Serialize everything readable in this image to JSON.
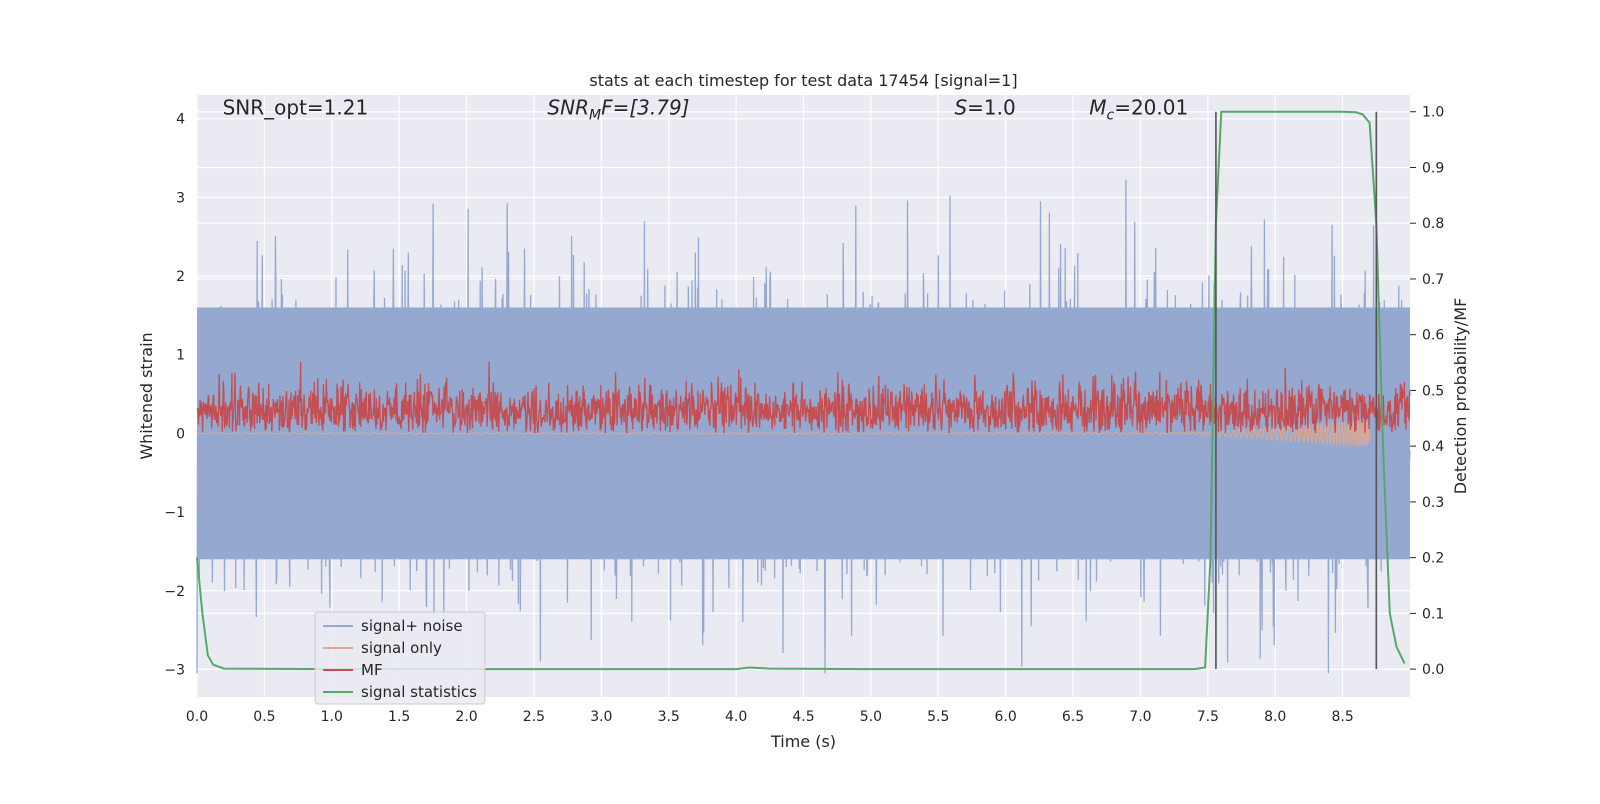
{
  "chart_data": {
    "type": "line",
    "title": "stats at each timestep for test data 17454 [signal=1]",
    "xlabel": "Time (s)",
    "ylabel_left": "Whitened strain",
    "ylabel_right": "Detection probability/MF",
    "xlim": [
      0.0,
      9.0
    ],
    "ylim_left": [
      -3.35,
      4.3
    ],
    "ylim_right": [
      -0.05,
      1.03
    ],
    "xticks": [
      0.0,
      0.5,
      1.0,
      1.5,
      2.0,
      2.5,
      3.0,
      3.5,
      4.0,
      4.5,
      5.0,
      5.5,
      6.0,
      6.5,
      7.0,
      7.5,
      8.0,
      8.5
    ],
    "xtick_labels": [
      "0.0",
      "0.5",
      "1.0",
      "1.5",
      "2.0",
      "2.5",
      "3.0",
      "3.5",
      "4.0",
      "4.5",
      "5.0",
      "5.5",
      "6.0",
      "6.5",
      "7.0",
      "7.5",
      "8.0",
      "8.5"
    ],
    "yticks_left": [
      -3,
      -2,
      -1,
      0,
      1,
      2,
      3,
      4
    ],
    "ytick_labels_left": [
      "−3",
      "−2",
      "−1",
      "0",
      "1",
      "2",
      "3",
      "4"
    ],
    "yticks_right": [
      0.0,
      0.1,
      0.2,
      0.3,
      0.4,
      0.5,
      0.6,
      0.7,
      0.8,
      0.9,
      1.0
    ],
    "ytick_labels_right": [
      "0.0",
      "0.1",
      "0.2",
      "0.3",
      "0.4",
      "0.5",
      "0.6",
      "0.7",
      "0.8",
      "0.9",
      "1.0"
    ],
    "grid": true,
    "legend_position": "lower-left",
    "annotations": [
      {
        "text": "SNR_opt=1.21",
        "x": 0.19,
        "y": 4.05
      },
      {
        "text_main": "SNR",
        "text_sub": "M",
        "text_rest": "F=[3.79]",
        "x": 2.6,
        "y": 4.05
      },
      {
        "text_main": "S",
        "text_sub": "",
        "text_rest": "=1.0",
        "x": 5.62,
        "y": 4.05
      },
      {
        "text_main": "M",
        "text_sub": "c",
        "text_rest": "=20.01",
        "x": 6.62,
        "y": 4.05
      }
    ],
    "series": [
      {
        "name": "signal+ noise",
        "color": "#95a8cf",
        "kind": "noise",
        "band_low": -1.6,
        "band_high": 1.6,
        "peak_max": 3.27,
        "peak_min": -3.05
      },
      {
        "name": "signal only",
        "color": "#e3a88e",
        "kind": "chirp",
        "merger_time": 8.72,
        "peak_amplitude": 0.25
      },
      {
        "name": "MF",
        "color": "#c44e52",
        "kind": "mf",
        "axis": "left",
        "base": 0.0,
        "mean": 0.3,
        "peak_max": 0.95
      },
      {
        "name": "signal statistics",
        "color": "#55a868",
        "axis": "right",
        "x": [
          0.0,
          0.04,
          0.08,
          0.12,
          0.2,
          1.0,
          2.0,
          3.0,
          4.0,
          4.1,
          4.25,
          5.0,
          6.0,
          7.0,
          7.4,
          7.48,
          7.52,
          7.56,
          7.6,
          7.65,
          8.0,
          8.5,
          8.6,
          8.65,
          8.7,
          8.75,
          8.8,
          8.85,
          8.9,
          8.96
        ],
        "y": [
          0.2,
          0.1,
          0.025,
          0.008,
          0.001,
          0.0,
          0.0,
          0.0,
          0.0,
          0.003,
          0.001,
          0.0,
          0.0,
          0.0,
          0.0,
          0.003,
          0.2,
          0.8,
          1.0,
          1.0,
          1.0,
          1.0,
          0.999,
          0.995,
          0.98,
          0.8,
          0.4,
          0.1,
          0.04,
          0.01
        ]
      }
    ],
    "vertical_lines": [
      {
        "x": 7.56,
        "y_from": 0.0,
        "y_to": 1.0,
        "color": "#555555"
      },
      {
        "x": 8.75,
        "y_from": 0.0,
        "y_to": 1.0,
        "color": "#555555"
      }
    ]
  }
}
